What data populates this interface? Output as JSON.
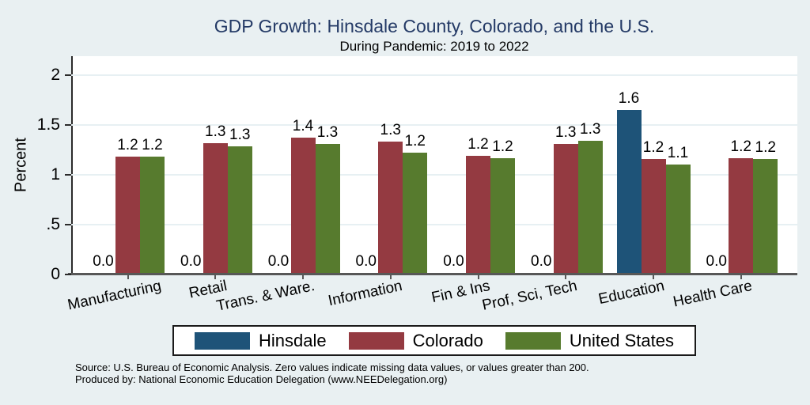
{
  "title": "GDP Growth: Hinsdale County, Colorado, and the U.S.",
  "subtitle": "During Pandemic: 2019 to 2022",
  "chart_data": {
    "type": "bar",
    "title": "GDP Growth: Hinsdale County, Colorado, and the U.S.",
    "subtitle": "During Pandemic: 2019 to 2022",
    "ylabel": "Percent",
    "xlabel": "",
    "ylim": [
      0,
      2.19
    ],
    "yticks": [
      0,
      0.5,
      1,
      1.5,
      2
    ],
    "ytick_labels": [
      "0",
      ".5",
      "1",
      "1.5",
      "2"
    ],
    "grid": true,
    "legend_position": "bottom",
    "categories": [
      "Manufacturing",
      "Retail",
      "Trans. & Ware.",
      "Information",
      "Fin & Ins",
      "Prof, Sci, Tech",
      "Education",
      "Health Care"
    ],
    "series": [
      {
        "name": "Hinsdale",
        "color": "#1e5378",
        "values": [
          0,
          0,
          0,
          0,
          0,
          0,
          1.65,
          0
        ],
        "labels": [
          "0.0",
          "0.0",
          "0.0",
          "0.0",
          "0.0",
          "0.0",
          "1.6",
          "0.0"
        ]
      },
      {
        "name": "Colorado",
        "color": "#943a41",
        "values": [
          1.18,
          1.32,
          1.37,
          1.33,
          1.19,
          1.31,
          1.16,
          1.17
        ],
        "labels": [
          "1.2",
          "1.3",
          "1.4",
          "1.3",
          "1.2",
          "1.3",
          "1.2",
          "1.2"
        ]
      },
      {
        "name": "United States",
        "color": "#577b2e",
        "values": [
          1.18,
          1.285,
          1.31,
          1.22,
          1.17,
          1.34,
          1.1,
          1.16
        ],
        "labels": [
          "1.2",
          "1.3",
          "1.3",
          "1.2",
          "1.2",
          "1.3",
          "1.1",
          "1.2"
        ]
      }
    ]
  },
  "footer": {
    "line1": "Source: U.S. Bureau of Economic Analysis. Zero values indicate missing data values, or values greater than 200.",
    "line2": "Produced by: National Economic Education Delegation (www.NEEDelegation.org)"
  },
  "colors": {
    "background": "#e9f0f2",
    "plot_background": "#ffffff",
    "title_text": "#243a66",
    "hinsdale": "#1e5378",
    "colorado": "#943a41",
    "united_states": "#577b2e"
  }
}
